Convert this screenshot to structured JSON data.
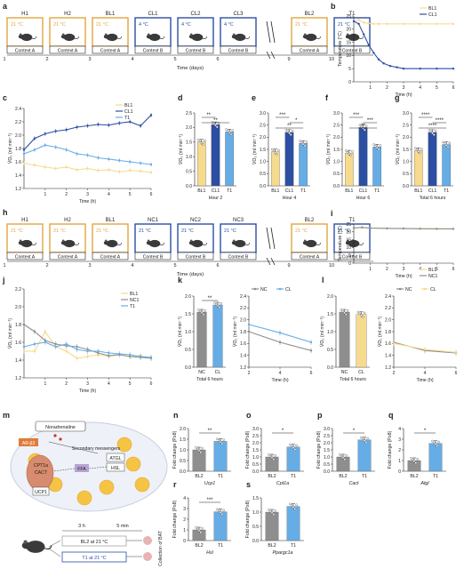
{
  "colors": {
    "orange": "#E2A53E",
    "blue": "#2C4FA3",
    "light": "#66ADE6",
    "gray": "#8E8E8E",
    "bl1": "#F6DA8E",
    "gray_text": "#666666"
  },
  "panel_letters": [
    "a",
    "b",
    "c",
    "d",
    "e",
    "f",
    "g",
    "h",
    "i",
    "j",
    "k",
    "l",
    "m",
    "n",
    "o",
    "p",
    "q",
    "r",
    "s"
  ],
  "units": {
    "t_time_h": "Time (h)",
    "t_temp": "Temperature (°C)",
    "t_vo2": "V̇O₂ (ml min⁻¹)",
    "t_fold": "Fold change (P≥8)"
  },
  "pa": {
    "boxes": [
      {
        "name": "H1",
        "temp": "21 °C",
        "color": "orange"
      },
      {
        "name": "H2",
        "temp": "21 °C",
        "color": "orange"
      },
      {
        "name": "BL1",
        "temp": "21 °C",
        "color": "orange"
      },
      {
        "name": "CL1",
        "temp": "4 °C",
        "color": "blue"
      },
      {
        "name": "CL2",
        "temp": "4 °C",
        "color": "blue"
      },
      {
        "name": "CL3",
        "temp": "4 °C",
        "color": "blue"
      },
      {
        "name": "BL2",
        "temp": "21 °C",
        "color": "orange"
      },
      {
        "name": "T1",
        "temp": "21 °C",
        "color": "blue"
      }
    ],
    "contexts": [
      "Context A",
      "Context A",
      "Context A",
      "Context B",
      "Context B",
      "Context B",
      "Context A",
      "Context B"
    ],
    "days": [
      "1",
      "2",
      "3",
      "4",
      "5",
      "6",
      "9",
      "10"
    ],
    "xlabel": "Time (days)"
  },
  "ph": {
    "boxes": [
      {
        "name": "H1",
        "temp": "21 °C",
        "color": "orange"
      },
      {
        "name": "H2",
        "temp": "21 °C",
        "color": "orange"
      },
      {
        "name": "BL1",
        "temp": "21 °C",
        "color": "orange"
      },
      {
        "name": "NC1",
        "temp": "21 °C",
        "color": "blue"
      },
      {
        "name": "NC2",
        "temp": "21 °C",
        "color": "blue"
      },
      {
        "name": "NC3",
        "temp": "21 °C",
        "color": "blue"
      },
      {
        "name": "BL2",
        "temp": "21 °C",
        "color": "orange"
      },
      {
        "name": "T1",
        "temp": "21 °C",
        "color": "blue"
      }
    ],
    "contexts": [
      "Context A",
      "Context A",
      "Context A",
      "Context B",
      "Context B",
      "Context B",
      "Context A",
      "Context B"
    ],
    "days": [
      "1",
      "2",
      "3",
      "4",
      "5",
      "6",
      "9",
      "10"
    ],
    "xlabel": "Time (days)"
  },
  "pm": {
    "labels": [
      "Noradrenaline",
      "AR-β3",
      "Secondary messengers",
      "ATGL",
      "HSL",
      "CPT1a",
      "CACT",
      "FFA",
      "UCP1"
    ],
    "protocol": {
      "duration1": "3 h",
      "duration2": "5 min",
      "row1": "BL2 at 21 °C",
      "row2": "T1 at 21 °C",
      "collect": "Collection of BAT"
    }
  },
  "chart_data": [
    {
      "id": "b",
      "type": "line",
      "xlabel": "Time (h)",
      "ylabel": "Temperature (°C)",
      "xlim": [
        0,
        6
      ],
      "ylim": [
        0,
        25
      ],
      "xticks": [
        1,
        2,
        3,
        4,
        5,
        6
      ],
      "yticks": [
        0,
        5,
        10,
        15,
        20,
        25
      ],
      "series": [
        {
          "name": "BL1",
          "color": "bl1",
          "x": [
            0,
            0.3,
            0.6,
            0.9,
            1.2,
            1.5,
            2,
            3,
            4,
            5,
            6
          ],
          "y": [
            23,
            23.5,
            22.5,
            22.2,
            22,
            22,
            22,
            22,
            22,
            22,
            22
          ]
        },
        {
          "name": "CL1",
          "color": "blue",
          "x": [
            0,
            0.3,
            0.6,
            0.9,
            1.2,
            1.5,
            1.8,
            2.2,
            2.6,
            3,
            4,
            5,
            6
          ],
          "y": [
            23,
            22,
            18,
            14,
            11,
            8.5,
            7,
            6,
            5.5,
            5,
            5,
            5,
            5
          ]
        }
      ]
    },
    {
      "id": "c",
      "type": "line",
      "xlabel": "Time (h)",
      "ylabel": "V̇O₂ (ml min⁻¹)",
      "xlim": [
        0,
        6
      ],
      "ylim": [
        1.2,
        2.4
      ],
      "xticks": [
        1,
        2,
        3,
        4,
        5,
        6
      ],
      "yticks": [
        1.2,
        1.4,
        1.6,
        1.8,
        2.0,
        2.2,
        2.4
      ],
      "series": [
        {
          "name": "BL1",
          "color": "bl1",
          "x": [
            0,
            0.5,
            1,
            1.5,
            2,
            2.5,
            3,
            3.5,
            4,
            4.5,
            5,
            5.5,
            6
          ],
          "y": [
            1.58,
            1.55,
            1.52,
            1.5,
            1.52,
            1.48,
            1.5,
            1.47,
            1.48,
            1.45,
            1.47,
            1.46,
            1.44
          ]
        },
        {
          "name": "CL1",
          "color": "blue",
          "x": [
            0,
            0.5,
            1,
            1.5,
            2,
            2.5,
            3,
            3.5,
            4,
            4.5,
            5,
            5.5,
            6
          ],
          "y": [
            1.78,
            1.95,
            2.02,
            2.06,
            2.08,
            2.12,
            2.14,
            2.16,
            2.15,
            2.18,
            2.2,
            2.14,
            2.3
          ]
        },
        {
          "name": "T1",
          "color": "light",
          "x": [
            0,
            0.5,
            1,
            1.5,
            2,
            2.5,
            3,
            3.5,
            4,
            4.5,
            5,
            5.5,
            6
          ],
          "y": [
            1.72,
            1.78,
            1.85,
            1.82,
            1.78,
            1.72,
            1.7,
            1.66,
            1.64,
            1.62,
            1.6,
            1.58,
            1.56
          ]
        }
      ]
    },
    {
      "id": "d",
      "type": "bar",
      "xlabel": "Hour 2",
      "ylabel": "V̇O₂ (ml min⁻¹)",
      "ylim": [
        0,
        2.5
      ],
      "yticks": [
        0,
        0.5,
        1.0,
        1.5,
        2.0,
        2.5
      ],
      "categories": [
        "BL1",
        "CL1",
        "T1"
      ],
      "values": [
        1.5,
        2.1,
        1.85
      ],
      "colors": [
        "bl1",
        "blue",
        "light"
      ],
      "sig": [
        {
          "a": 0,
          "b": 1,
          "text": "**"
        },
        {
          "a": 0,
          "b": 2,
          "text": "**"
        }
      ]
    },
    {
      "id": "e",
      "type": "bar",
      "xlabel": "Hour 4",
      "ylabel": "V̇O₂ (ml min⁻¹)",
      "ylim": [
        0,
        3.0
      ],
      "yticks": [
        0,
        0.5,
        1.0,
        1.5,
        2.0,
        2.5,
        3.0
      ],
      "categories": [
        "BL1",
        "CL1",
        "T1"
      ],
      "values": [
        1.4,
        2.2,
        1.75
      ],
      "colors": [
        "bl1",
        "blue",
        "light"
      ],
      "sig": [
        {
          "a": 0,
          "b": 1,
          "text": "***"
        },
        {
          "a": 1,
          "b": 2,
          "text": "*"
        },
        {
          "a": 0,
          "b": 2,
          "text": "**"
        }
      ]
    },
    {
      "id": "f",
      "type": "bar",
      "xlabel": "Hour 6",
      "ylabel": "V̇O₂ (ml min⁻¹)",
      "ylim": [
        0,
        3.0
      ],
      "yticks": [
        0,
        0.5,
        1.0,
        1.5,
        2.0,
        2.5,
        3.0
      ],
      "categories": [
        "BL1",
        "CL1",
        "T1"
      ],
      "values": [
        1.35,
        2.4,
        1.6
      ],
      "colors": [
        "bl1",
        "blue",
        "light"
      ],
      "sig": [
        {
          "a": 0,
          "b": 1,
          "text": "***"
        },
        {
          "a": 1,
          "b": 2,
          "text": "***"
        },
        {
          "a": 0,
          "b": 2,
          "text": "**"
        }
      ]
    },
    {
      "id": "g",
      "type": "bar",
      "xlabel": "Total 6 hours",
      "ylabel": "V̇O₂ (ml min⁻¹)",
      "ylim": [
        0,
        3.0
      ],
      "yticks": [
        0,
        0.5,
        1.0,
        1.5,
        2.0,
        2.5,
        3.0
      ],
      "categories": [
        "BL1",
        "CL1",
        "T1"
      ],
      "values": [
        1.45,
        2.2,
        1.7
      ],
      "colors": [
        "bl1",
        "blue",
        "light"
      ],
      "sig": [
        {
          "a": 0,
          "b": 1,
          "text": "****"
        },
        {
          "a": 1,
          "b": 2,
          "text": "****"
        },
        {
          "a": 0,
          "b": 2,
          "text": "****"
        }
      ]
    },
    {
      "id": "i",
      "type": "line",
      "xlabel": "Time (h)",
      "ylabel": "Temperature (°C)",
      "xlim": [
        0,
        6
      ],
      "ylim": [
        0,
        25
      ],
      "xticks": [
        1,
        2,
        3,
        4,
        5,
        6
      ],
      "yticks": [
        0,
        5,
        10,
        15,
        20,
        25
      ],
      "series": [
        {
          "name": "BL1",
          "color": "bl1",
          "x": [
            0,
            0.5,
            1,
            2,
            3,
            4,
            5,
            6
          ],
          "y": [
            22.5,
            23,
            22.5,
            22.3,
            22.2,
            22.1,
            22,
            22
          ]
        },
        {
          "name": "NC1",
          "color": "gray",
          "x": [
            0,
            0.5,
            1,
            2,
            3,
            4,
            5,
            6
          ],
          "y": [
            22.5,
            22.8,
            22.4,
            22.2,
            22.1,
            22,
            21.9,
            21.9
          ]
        }
      ]
    },
    {
      "id": "j",
      "type": "line",
      "xlabel": "Time (h)",
      "ylabel": "V̇O₂ (ml min⁻¹)",
      "xlim": [
        0,
        6
      ],
      "ylim": [
        1.2,
        2.2
      ],
      "xticks": [
        1,
        2,
        3,
        4,
        5,
        6
      ],
      "yticks": [
        1.2,
        1.4,
        1.6,
        1.8,
        2.0,
        2.2
      ],
      "series": [
        {
          "name": "BL1",
          "color": "bl1",
          "x": [
            0,
            0.5,
            1,
            1.5,
            2,
            2.5,
            3,
            3.5,
            4,
            4.5,
            5,
            5.5,
            6
          ],
          "y": [
            1.5,
            1.5,
            1.72,
            1.55,
            1.5,
            1.42,
            1.44,
            1.46,
            1.44,
            1.46,
            1.44,
            1.45,
            1.42
          ]
        },
        {
          "name": "NC1",
          "color": "gray",
          "x": [
            0,
            0.5,
            1,
            1.5,
            2,
            2.5,
            3,
            3.5,
            4,
            4.5,
            5,
            5.5,
            6
          ],
          "y": [
            1.8,
            1.72,
            1.62,
            1.58,
            1.56,
            1.55,
            1.52,
            1.48,
            1.45,
            1.46,
            1.44,
            1.43,
            1.42
          ]
        },
        {
          "name": "T1",
          "color": "light",
          "x": [
            0,
            0.5,
            1,
            1.5,
            2,
            2.5,
            3,
            3.5,
            4,
            4.5,
            5,
            5.5,
            6
          ],
          "y": [
            1.55,
            1.58,
            1.6,
            1.55,
            1.58,
            1.52,
            1.5,
            1.5,
            1.48,
            1.47,
            1.46,
            1.44,
            1.43
          ]
        }
      ]
    },
    {
      "id": "k1",
      "type": "bar",
      "xlabel": "Total 6 hours",
      "ylabel": "V̇O₂ (ml min⁻¹)",
      "ylim": [
        0,
        2.0
      ],
      "yticks": [
        0,
        0.5,
        1.0,
        1.5,
        2.0
      ],
      "categories": [
        "NC",
        "CL"
      ],
      "values": [
        1.55,
        1.75
      ],
      "colors": [
        "gray",
        "light"
      ],
      "sig": [
        {
          "a": 0,
          "b": 1,
          "text": "**"
        }
      ]
    },
    {
      "id": "k2",
      "type": "line",
      "xlabel": "Time (h)",
      "ylabel": "V̇O₂ (ml min⁻¹)",
      "xlim": [
        2,
        6
      ],
      "ylim": [
        1.2,
        2.4
      ],
      "xticks": [
        2,
        4,
        6
      ],
      "yticks": [
        1.2,
        1.4,
        1.6,
        1.8,
        2.0,
        2.2,
        2.4
      ],
      "legend": "top",
      "series": [
        {
          "name": "NC",
          "color": "gray",
          "x": [
            2,
            4,
            6
          ],
          "y": [
            1.8,
            1.62,
            1.48
          ]
        },
        {
          "name": "CL",
          "color": "light",
          "x": [
            2,
            4,
            6
          ],
          "y": [
            1.92,
            1.78,
            1.62
          ]
        }
      ]
    },
    {
      "id": "l1",
      "type": "bar",
      "xlabel": "Total 6 hours",
      "ylabel": "V̇O₂ (ml min⁻¹)",
      "ylim": [
        0,
        2.0
      ],
      "yticks": [
        0,
        0.5,
        1.0,
        1.5,
        2.0
      ],
      "categories": [
        "NC",
        "CL"
      ],
      "values": [
        1.55,
        1.48
      ],
      "colors": [
        "gray",
        "bl1"
      ]
    },
    {
      "id": "l2",
      "type": "line",
      "xlabel": "Time (h)",
      "ylabel": "V̇O₂ (ml min⁻¹)",
      "xlim": [
        2,
        6
      ],
      "ylim": [
        1.2,
        2.4
      ],
      "xticks": [
        2,
        4,
        6
      ],
      "yticks": [
        1.2,
        1.4,
        1.6,
        1.8,
        2.0,
        2.2,
        2.4
      ],
      "legend": "top",
      "series": [
        {
          "name": "NC",
          "color": "gray",
          "x": [
            2,
            4,
            6
          ],
          "y": [
            1.62,
            1.48,
            1.44
          ]
        },
        {
          "name": "CL",
          "color": "bl1",
          "x": [
            2,
            4,
            6
          ],
          "y": [
            1.6,
            1.5,
            1.45
          ]
        }
      ]
    },
    {
      "id": "n",
      "type": "bar",
      "gene": "Ucp1",
      "ylabel": "Fold change (P≥8)",
      "ylim": [
        0,
        2.0
      ],
      "yticks": [
        0,
        0.5,
        1.0,
        1.5,
        2.0
      ],
      "categories": [
        "BL2",
        "T1"
      ],
      "values": [
        1.0,
        1.4
      ],
      "colors": [
        "gray",
        "light"
      ],
      "sig": [
        {
          "a": 0,
          "b": 1,
          "text": "**"
        }
      ]
    },
    {
      "id": "o",
      "type": "bar",
      "gene": "Cpt1a",
      "ylabel": "Fold change (P≥8)",
      "ylim": [
        0,
        3.0
      ],
      "yticks": [
        0,
        0.5,
        1.0,
        1.5,
        2.0,
        2.5,
        3.0
      ],
      "categories": [
        "BL2",
        "T1"
      ],
      "values": [
        1.0,
        1.7
      ],
      "colors": [
        "gray",
        "light"
      ],
      "sig": [
        {
          "a": 0,
          "b": 1,
          "text": "*"
        }
      ]
    },
    {
      "id": "p",
      "type": "bar",
      "gene": "Cact",
      "ylabel": "Fold change (P≥8)",
      "ylim": [
        0,
        3.0
      ],
      "yticks": [
        0,
        0.5,
        1.0,
        1.5,
        2.0,
        2.5,
        3.0
      ],
      "categories": [
        "BL2",
        "T1"
      ],
      "values": [
        1.0,
        2.2
      ],
      "colors": [
        "gray",
        "light"
      ],
      "sig": [
        {
          "a": 0,
          "b": 1,
          "text": "*"
        }
      ]
    },
    {
      "id": "q",
      "type": "bar",
      "gene": "Atgl",
      "ylabel": "Fold change (P≥8)",
      "ylim": [
        0,
        4.0
      ],
      "yticks": [
        0,
        1,
        2,
        3,
        4
      ],
      "categories": [
        "BL2",
        "T1"
      ],
      "values": [
        1.0,
        2.6
      ],
      "colors": [
        "gray",
        "light"
      ],
      "sig": [
        {
          "a": 0,
          "b": 1,
          "text": "*"
        }
      ]
    },
    {
      "id": "r",
      "type": "bar",
      "gene": "Hsl",
      "ylabel": "Fold change (P≥8)",
      "ylim": [
        0,
        4.0
      ],
      "yticks": [
        0,
        1,
        2,
        3,
        4
      ],
      "categories": [
        "BL2",
        "T1"
      ],
      "values": [
        1.0,
        2.7
      ],
      "colors": [
        "gray",
        "light"
      ],
      "sig": [
        {
          "a": 0,
          "b": 1,
          "text": "***"
        }
      ]
    },
    {
      "id": "s",
      "type": "bar",
      "gene": "Ppargc1a",
      "ylabel": "Fold change (P≥8)",
      "ylim": [
        0,
        1.5
      ],
      "yticks": [
        0,
        0.5,
        1.0,
        1.5
      ],
      "categories": [
        "BL2",
        "T1"
      ],
      "values": [
        1.0,
        1.2
      ],
      "colors": [
        "gray",
        "light"
      ]
    }
  ]
}
